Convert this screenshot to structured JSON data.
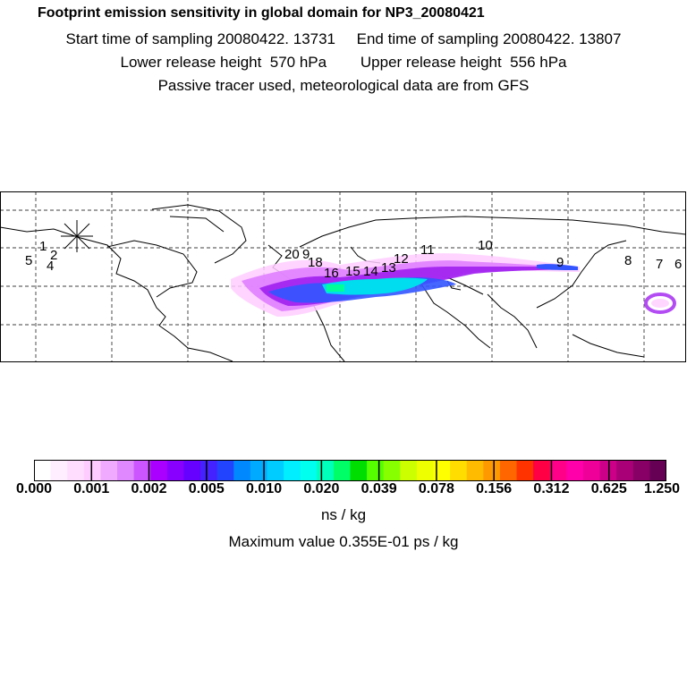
{
  "header": {
    "title": "Footprint emission sensitivity in global domain for NP3_20080421",
    "line2": "Start time of sampling 20080422. 13731     End time of sampling 20080422. 13807",
    "line3": "Lower release height  570 hPa        Upper release height  556 hPa",
    "line4": "Passive tracer used, meteorological data are from GFS"
  },
  "map": {
    "point_labels": [
      "1",
      "5",
      "2",
      "4",
      "20",
      "9",
      "18",
      "16",
      "15",
      "14",
      "13",
      "12",
      "11",
      "10",
      "9",
      "8",
      "7",
      "6"
    ],
    "plume_colors": [
      "#ffccff",
      "#e080ff",
      "#a020f0",
      "#3355ff",
      "#00ddee",
      "#00ff99"
    ]
  },
  "colorbar": {
    "colors": [
      "#ffffff",
      "#ffeeff",
      "#ffddff",
      "#ffccff",
      "#f0aaff",
      "#e088ff",
      "#cc55ff",
      "#aa00ff",
      "#8800ff",
      "#6600ff",
      "#4422ff",
      "#2244ff",
      "#0088ff",
      "#00aaff",
      "#00ccff",
      "#00eeff",
      "#00ffee",
      "#00ffbb",
      "#00ff66",
      "#00dd00",
      "#55ff00",
      "#88ff00",
      "#ccff00",
      "#eeff00",
      "#ffff00",
      "#ffdd00",
      "#ffbb00",
      "#ff9900",
      "#ff6600",
      "#ff3300",
      "#ff0044",
      "#ff0088",
      "#ff00aa",
      "#ee0099",
      "#cc0088",
      "#aa0077",
      "#880066",
      "#660055"
    ],
    "tick_labels": [
      "0.000",
      "0.001",
      "0.002",
      "0.005",
      "0.010",
      "0.020",
      "0.039",
      "0.078",
      "0.156",
      "0.312",
      "0.625",
      "1.250"
    ],
    "units": "ns / kg",
    "maximum": "Maximum value  0.355E-01 ps / kg"
  }
}
